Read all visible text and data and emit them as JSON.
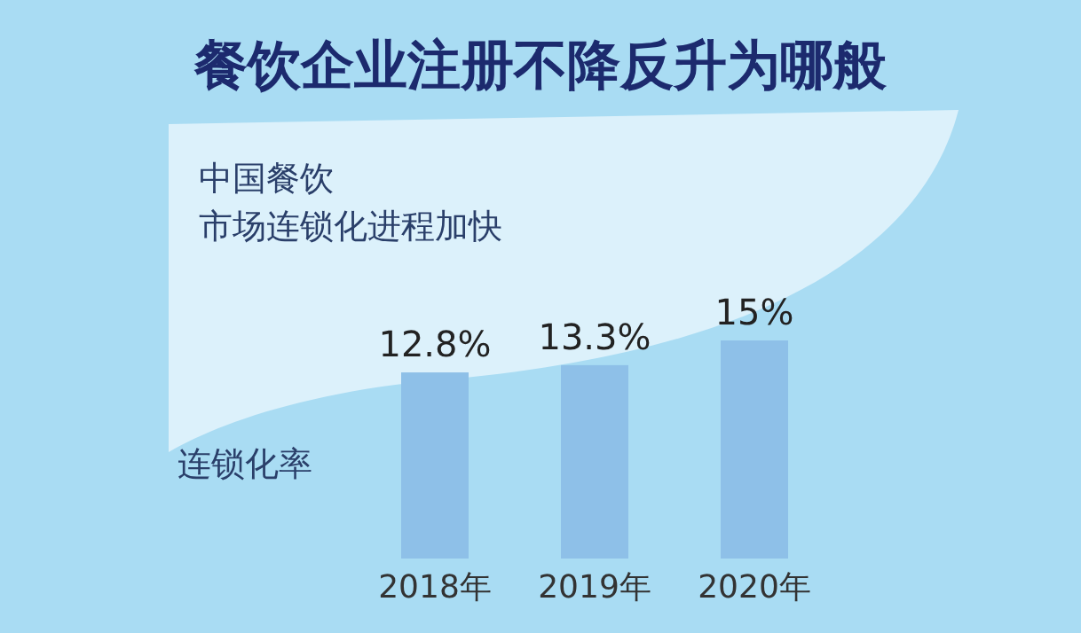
{
  "chart_data": {
    "type": "bar",
    "title": "餐饮企业注册不降反升为哪般",
    "annotations": [
      "中国餐饮",
      "市场连锁化进程加快"
    ],
    "ylabel": "连锁化率",
    "categories": [
      "2018年",
      "2019年",
      "2020年"
    ],
    "values": [
      12.8,
      13.3,
      15
    ],
    "value_labels": [
      "12.8%",
      "13.3%",
      "15%"
    ],
    "color": "#8ec0e8"
  }
}
